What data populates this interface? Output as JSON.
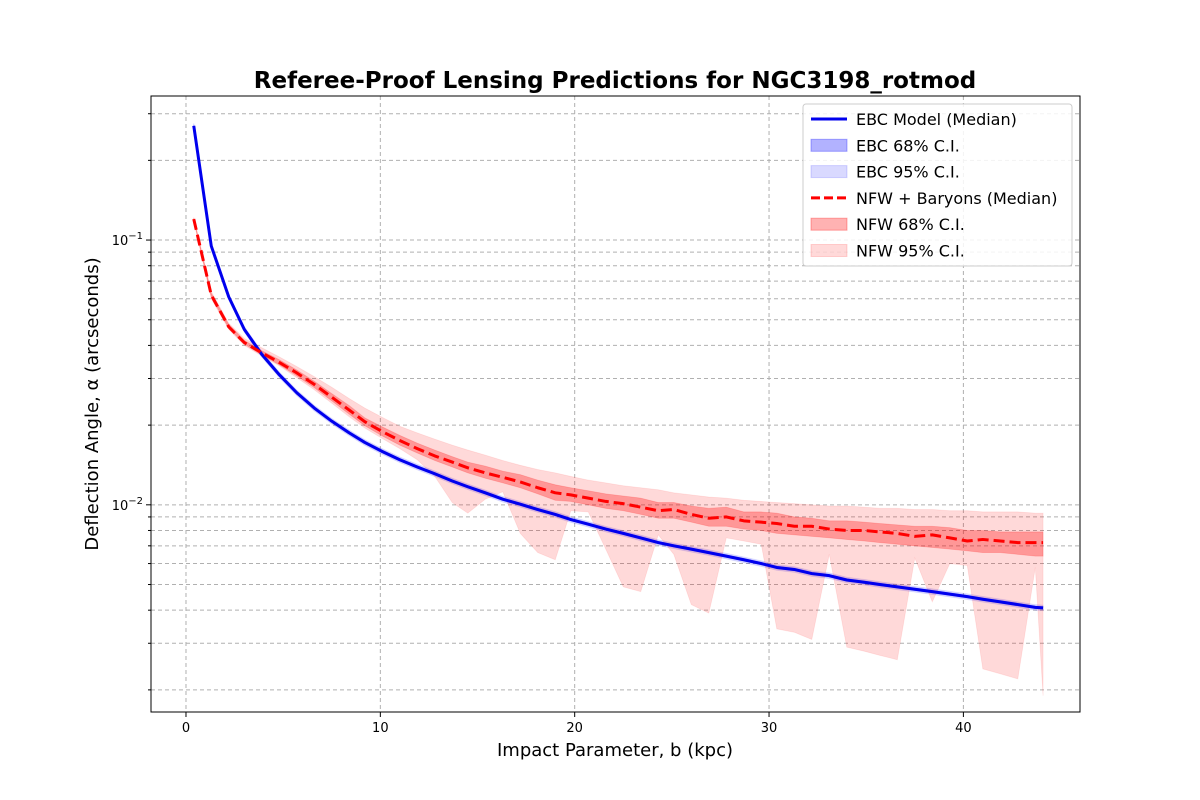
{
  "chart_data": {
    "type": "line",
    "title": "Referee-Proof Lensing Predictions for NGC3198_rotmod",
    "xlabel": "Impact Parameter, b (kpc)",
    "ylabel": "Deflection Angle, α (arcseconds)",
    "xlim": [
      -1.8,
      46.0
    ],
    "ylim": [
      0.00165,
      0.35
    ],
    "yscale": "log",
    "grid": true,
    "legend_position": "top-right",
    "x_ticks": [
      0,
      10,
      20,
      30,
      40
    ],
    "x_tick_labels": [
      "0",
      "10",
      "20",
      "30",
      "40"
    ],
    "y_tick_labels": [
      {
        "base": "10",
        "exp": "−2",
        "value": 0.01
      },
      {
        "base": "10",
        "exp": "−1",
        "value": 0.1
      }
    ],
    "x": [
      0.4,
      1.3,
      2.2,
      3.0,
      3.9,
      4.8,
      5.7,
      6.6,
      7.5,
      8.4,
      9.2,
      10.1,
      11.0,
      11.9,
      12.8,
      13.7,
      14.5,
      15.4,
      16.3,
      17.2,
      18.1,
      19.0,
      19.8,
      20.7,
      21.6,
      22.5,
      23.4,
      24.3,
      25.1,
      26.0,
      26.9,
      27.8,
      28.7,
      29.6,
      30.4,
      31.3,
      32.2,
      33.1,
      34.0,
      34.9,
      35.7,
      36.6,
      37.5,
      38.4,
      39.3,
      40.2,
      41.0,
      41.9,
      42.8,
      43.7,
      44.1
    ],
    "series": [
      {
        "name": "EBC Model (Median)",
        "color": "#0000ee",
        "style": "solid",
        "values": [
          0.27,
          0.095,
          0.061,
          0.046,
          0.037,
          0.031,
          0.0265,
          0.0232,
          0.0207,
          0.0187,
          0.0172,
          0.0159,
          0.0148,
          0.0139,
          0.0131,
          0.0123,
          0.0117,
          0.0111,
          0.0105,
          0.01005,
          0.0096,
          0.0092,
          0.0088,
          0.00845,
          0.0081,
          0.0078,
          0.0075,
          0.0072,
          0.007,
          0.0068,
          0.0066,
          0.0064,
          0.0062,
          0.006,
          0.0058,
          0.0057,
          0.0055,
          0.0054,
          0.0052,
          0.0051,
          0.005,
          0.0049,
          0.0048,
          0.0047,
          0.0046,
          0.0045,
          0.0044,
          0.0043,
          0.0042,
          0.0041,
          0.00408
        ]
      },
      {
        "name": "NFW + Baryons (Median)",
        "color": "#ff0000",
        "style": "dashed",
        "values": [
          0.12,
          0.062,
          0.047,
          0.041,
          0.0375,
          0.0345,
          0.0315,
          0.0285,
          0.0255,
          0.0228,
          0.0206,
          0.0189,
          0.0175,
          0.0163,
          0.0153,
          0.0145,
          0.0138,
          0.0132,
          0.0127,
          0.0122,
          0.0116,
          0.0111,
          0.0109,
          0.0106,
          0.0103,
          0.0101,
          0.0098,
          0.0095,
          0.0096,
          0.0092,
          0.0089,
          0.009,
          0.0087,
          0.0086,
          0.0085,
          0.0083,
          0.0083,
          0.0081,
          0.008,
          0.008,
          0.0079,
          0.0078,
          0.0076,
          0.0077,
          0.0075,
          0.0073,
          0.0074,
          0.0073,
          0.0072,
          0.0072,
          0.0072
        ]
      }
    ],
    "bands": [
      {
        "name": "EBC 95% C.I.",
        "color": "#0000ff",
        "opacity": 0.15,
        "lower_factor": 0.975,
        "upper_factor": 1.025
      },
      {
        "name": "EBC 68% C.I.",
        "color": "#0000ff",
        "opacity": 0.3,
        "lower_factor": 0.988,
        "upper_factor": 1.012
      },
      {
        "name": "NFW 95% C.I.",
        "color": "#ff0000",
        "opacity": 0.15,
        "lower": [
          0.118,
          0.06,
          0.046,
          0.04,
          0.0365,
          0.0335,
          0.0302,
          0.0272,
          0.0242,
          0.0215,
          0.0195,
          0.0178,
          0.0163,
          0.0148,
          0.0128,
          0.0102,
          0.0093,
          0.0105,
          0.0112,
          0.0078,
          0.0066,
          0.0062,
          0.0095,
          0.0094,
          0.0068,
          0.0049,
          0.0047,
          0.0077,
          0.0065,
          0.0042,
          0.0039,
          0.0075,
          0.0073,
          0.0071,
          0.0034,
          0.0033,
          0.0031,
          0.0065,
          0.0029,
          0.0028,
          0.0027,
          0.0026,
          0.0063,
          0.0043,
          0.006,
          0.0059,
          0.0024,
          0.0023,
          0.0022,
          0.0058,
          0.0019
        ],
        "upper": [
          0.122,
          0.064,
          0.0485,
          0.0425,
          0.0392,
          0.0362,
          0.0333,
          0.0305,
          0.0278,
          0.0252,
          0.0232,
          0.0214,
          0.0198,
          0.0187,
          0.0177,
          0.0168,
          0.0161,
          0.0154,
          0.0147,
          0.0141,
          0.0136,
          0.0132,
          0.0128,
          0.0124,
          0.0121,
          0.0118,
          0.0116,
          0.0114,
          0.0111,
          0.0109,
          0.0107,
          0.0106,
          0.0104,
          0.0103,
          0.0102,
          0.0101,
          0.01,
          0.0099,
          0.0099,
          0.0098,
          0.0097,
          0.0097,
          0.0096,
          0.0096,
          0.0095,
          0.0095,
          0.0094,
          0.0094,
          0.0094,
          0.0093,
          0.0093
        ]
      },
      {
        "name": "NFW 68% C.I.",
        "color": "#ff0000",
        "opacity": 0.3,
        "lower": [
          0.119,
          0.061,
          0.0465,
          0.0405,
          0.0368,
          0.0338,
          0.0307,
          0.0277,
          0.0247,
          0.022,
          0.0199,
          0.0182,
          0.0168,
          0.0157,
          0.0147,
          0.0139,
          0.0132,
          0.0126,
          0.0121,
          0.0116,
          0.011,
          0.0104,
          0.0103,
          0.01,
          0.0097,
          0.0095,
          0.0092,
          0.0089,
          0.0089,
          0.0086,
          0.0083,
          0.0083,
          0.0081,
          0.008,
          0.0078,
          0.0077,
          0.0076,
          0.0075,
          0.0074,
          0.0073,
          0.0072,
          0.0071,
          0.007,
          0.0069,
          0.0068,
          0.0067,
          0.0066,
          0.0066,
          0.0065,
          0.0064,
          0.0064
        ],
        "upper": [
          0.121,
          0.063,
          0.048,
          0.0418,
          0.0382,
          0.0353,
          0.0323,
          0.0293,
          0.0263,
          0.0237,
          0.0213,
          0.0197,
          0.0183,
          0.0171,
          0.0161,
          0.0152,
          0.0145,
          0.014,
          0.0134,
          0.013,
          0.0124,
          0.0119,
          0.0116,
          0.0113,
          0.011,
          0.0108,
          0.0106,
          0.0102,
          0.0102,
          0.0099,
          0.0097,
          0.0098,
          0.0094,
          0.0094,
          0.0093,
          0.009,
          0.0089,
          0.0087,
          0.0087,
          0.0086,
          0.0085,
          0.0084,
          0.0083,
          0.0083,
          0.0082,
          0.008,
          0.008,
          0.0079,
          0.0079,
          0.0079,
          0.0079
        ]
      }
    ],
    "legend": [
      {
        "label": "EBC Model (Median)",
        "kind": "line",
        "color": "#0000ee",
        "style": "solid"
      },
      {
        "label": "EBC 68% C.I.",
        "kind": "patch",
        "color": "#0000ff",
        "opacity": 0.3
      },
      {
        "label": "EBC 95% C.I.",
        "kind": "patch",
        "color": "#0000ff",
        "opacity": 0.15
      },
      {
        "label": "NFW + Baryons (Median)",
        "kind": "line",
        "color": "#ff0000",
        "style": "dashed"
      },
      {
        "label": "NFW 68% C.I.",
        "kind": "patch",
        "color": "#ff0000",
        "opacity": 0.3
      },
      {
        "label": "NFW 95% C.I.",
        "kind": "patch",
        "color": "#ff0000",
        "opacity": 0.15
      }
    ]
  }
}
